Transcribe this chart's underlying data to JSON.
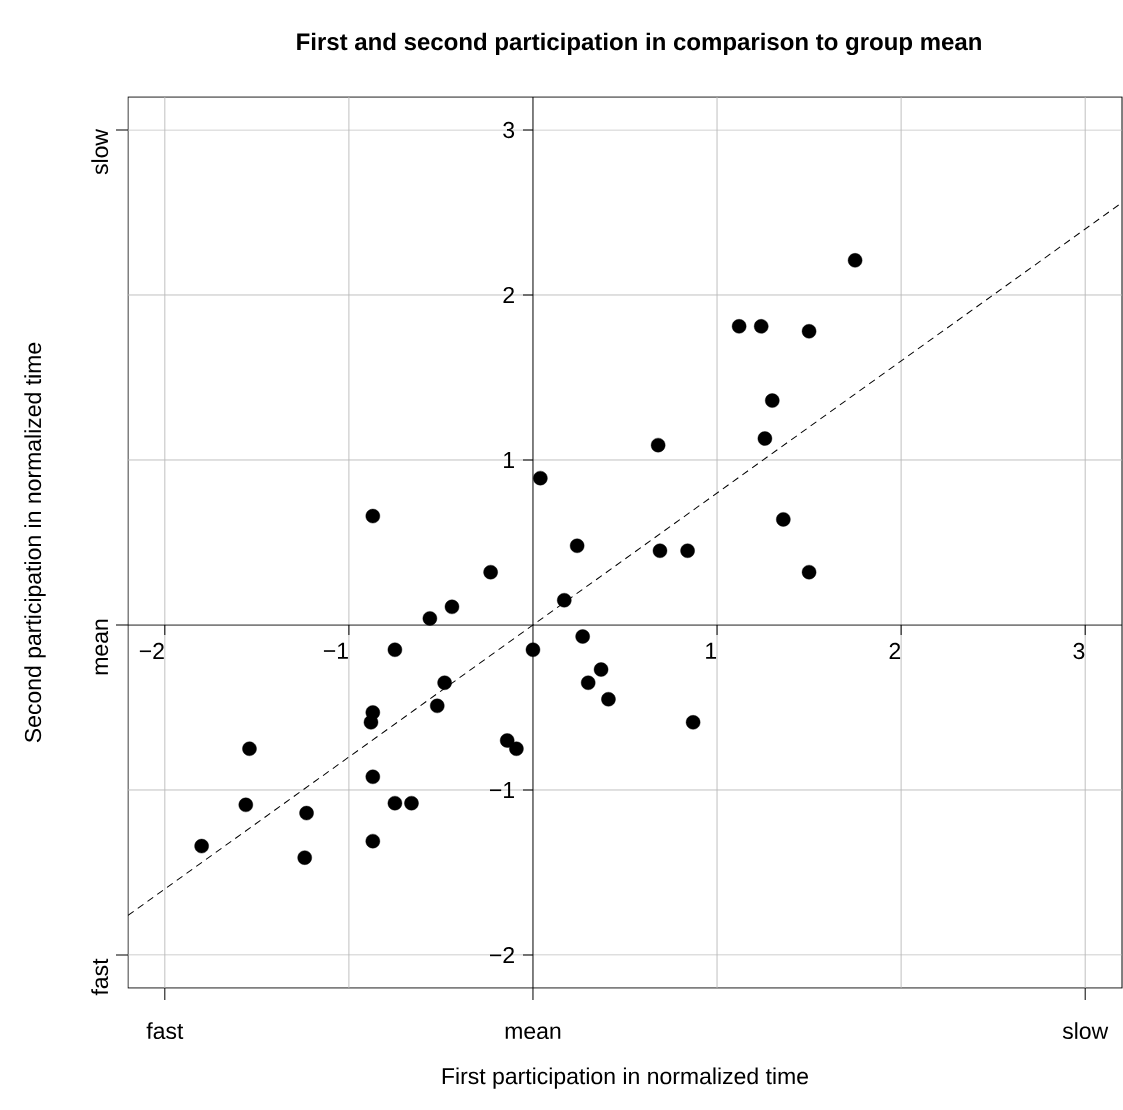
{
  "chart_data": {
    "type": "scatter",
    "title": "First and second participation in comparison to group mean",
    "xlabel": "First participation in normalized time",
    "ylabel": "Second participation in normalized time",
    "xlim": [
      -2.2,
      3.2
    ],
    "ylim": [
      -2.2,
      3.2
    ],
    "xticks": [
      {
        "value": -2,
        "label": "−2"
      },
      {
        "value": -1,
        "label": "−1"
      },
      {
        "value": 0,
        "label": null
      },
      1,
      2,
      3
    ],
    "yticks": [
      {
        "value": -2,
        "label": "−2"
      },
      {
        "value": -1,
        "label": "−1"
      },
      {
        "value": 0,
        "label": null
      },
      1,
      2,
      3
    ],
    "annotations": [
      "fast",
      "mean",
      "slow",
      "fast",
      "mean",
      "slow"
    ],
    "grid": true,
    "series": [
      {
        "color": "#000000",
        "x": [
          -1.8,
          -1.54,
          -1.56,
          -1.23,
          -1.24,
          -0.87,
          -0.87,
          -0.88,
          -0.87,
          -0.87,
          -0.75,
          -0.66,
          -0.75,
          -0.56,
          -0.44,
          -0.48,
          -0.52,
          -0.23,
          -0.14,
          -0.09,
          0.0,
          0.04,
          0.17,
          0.24,
          0.27,
          0.3,
          0.37,
          0.41,
          0.68,
          0.69,
          0.84,
          0.87,
          1.12,
          1.24,
          1.26,
          1.3,
          1.36,
          1.5,
          1.5,
          1.75
        ],
        "values": [
          -1.34,
          -0.75,
          -1.09,
          -1.14,
          -1.41,
          0.66,
          -0.53,
          -0.59,
          -0.92,
          -1.31,
          -1.08,
          -1.08,
          -0.15,
          0.04,
          0.11,
          -0.35,
          -0.49,
          0.32,
          -0.7,
          -0.75,
          -0.15,
          0.89,
          0.15,
          0.48,
          -0.07,
          -0.35,
          -0.27,
          -0.45,
          1.09,
          0.45,
          0.45,
          -0.59,
          1.81,
          1.81,
          1.13,
          1.36,
          0.64,
          1.78,
          0.32,
          2.21
        ]
      },
      {
        "type": "line",
        "color": "#000000",
        "marker": "none",
        "line_style": "dashed",
        "x": [
          -2.2,
          3.2
        ],
        "values": [
          -1.76,
          2.56
        ]
      }
    ]
  }
}
